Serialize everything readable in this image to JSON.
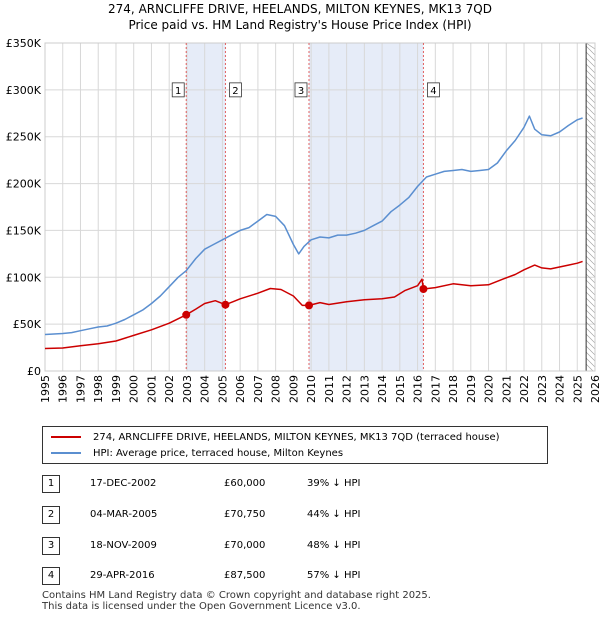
{
  "header": {
    "title": "274, ARNCLIFFE DRIVE, HEELANDS, MILTON KEYNES, MK13 7QD",
    "subtitle": "Price paid vs. HM Land Registry's House Price Index (HPI)"
  },
  "chart_data": {
    "type": "line",
    "title": "Price paid vs. HM Land Registry's House Price Index (HPI)",
    "xlabel": "",
    "ylabel": "",
    "xlim": [
      1995,
      2026
    ],
    "ylim": [
      0,
      350000
    ],
    "x_ticks": [
      "1995",
      "1996",
      "1997",
      "1998",
      "1999",
      "2000",
      "2001",
      "2002",
      "2003",
      "2004",
      "2005",
      "2006",
      "2007",
      "2008",
      "2009",
      "2010",
      "2011",
      "2012",
      "2013",
      "2014",
      "2015",
      "2016",
      "2017",
      "2018",
      "2019",
      "2020",
      "2021",
      "2022",
      "2023",
      "2024",
      "2025",
      "2026"
    ],
    "y_ticks": [
      {
        "value": 0,
        "label": "£0"
      },
      {
        "value": 50000,
        "label": "£50K"
      },
      {
        "value": 100000,
        "label": "£100K"
      },
      {
        "value": 150000,
        "label": "£150K"
      },
      {
        "value": 200000,
        "label": "£200K"
      },
      {
        "value": 250000,
        "label": "£250K"
      },
      {
        "value": 300000,
        "label": "£300K"
      },
      {
        "value": 350000,
        "label": "£350K"
      }
    ],
    "grid": true,
    "colors": {
      "property": "#cc0000",
      "hpi": "#5b8fd0",
      "shade": "#e6ecf8",
      "vline": "#e06060",
      "grid": "#d8d8d8",
      "future_hatch": "#999999"
    },
    "shaded_ranges": [
      [
        2002.96,
        2005.17
      ],
      [
        2009.88,
        2016.33
      ]
    ],
    "future_from": 2025.5,
    "series": [
      {
        "name": "274, ARNCLIFFE DRIVE, HEELANDS, MILTON KEYNES, MK13 7QD (terraced house)",
        "x": [
          1995,
          1996,
          1997,
          1998,
          1999,
          2000,
          2001,
          2002,
          2002.96,
          2003.5,
          2004,
          2004.6,
          2005.17,
          2005.6,
          2006,
          2007,
          2007.7,
          2008.3,
          2009,
          2009.5,
          2009.88,
          2010.5,
          2011,
          2012,
          2013,
          2014,
          2014.7,
          2015.3,
          2016,
          2016.25,
          2016.33,
          2017,
          2018,
          2019,
          2020,
          2020.8,
          2021.5,
          2022,
          2022.6,
          2023,
          2023.5,
          2024,
          2024.5,
          2025,
          2025.3
        ],
        "values": [
          24000,
          24500,
          27000,
          29000,
          32000,
          38000,
          44000,
          51000,
          60000,
          66000,
          72000,
          75000,
          70750,
          74000,
          77000,
          83000,
          88000,
          87000,
          80000,
          70000,
          70000,
          73000,
          71000,
          74000,
          76000,
          77000,
          79000,
          86000,
          91000,
          98000,
          87500,
          89000,
          93000,
          91000,
          92000,
          98000,
          103000,
          108000,
          113000,
          110000,
          109000,
          111000,
          113000,
          115000,
          117000
        ]
      },
      {
        "name": "HPI: Average price, terraced house, Milton Keynes",
        "x": [
          1995,
          1995.5,
          1996,
          1996.5,
          1997,
          1997.5,
          1998,
          1998.5,
          1999,
          1999.5,
          2000,
          2000.5,
          2001,
          2001.5,
          2002,
          2002.5,
          2002.96,
          2003.5,
          2004,
          2004.5,
          2005,
          2005.5,
          2006,
          2006.5,
          2007,
          2007.5,
          2008,
          2008.5,
          2009,
          2009.3,
          2009.6,
          2010,
          2010.5,
          2011,
          2011.5,
          2012,
          2012.5,
          2013,
          2013.5,
          2014,
          2014.5,
          2015,
          2015.5,
          2016,
          2016.5,
          2017,
          2017.5,
          2018,
          2018.5,
          2019,
          2019.5,
          2020,
          2020.5,
          2021,
          2021.5,
          2022,
          2022.3,
          2022.6,
          2023,
          2023.5,
          2024,
          2024.5,
          2025,
          2025.3
        ],
        "values": [
          39000,
          39500,
          40000,
          41000,
          43000,
          45000,
          47000,
          48000,
          51000,
          55000,
          60000,
          65000,
          72000,
          80000,
          90000,
          100000,
          107000,
          120000,
          130000,
          135000,
          140000,
          145000,
          150000,
          153000,
          160000,
          167000,
          165000,
          155000,
          135000,
          125000,
          133000,
          140000,
          143000,
          142000,
          145000,
          145000,
          147000,
          150000,
          155000,
          160000,
          170000,
          177000,
          185000,
          197000,
          207000,
          210000,
          213000,
          214000,
          215000,
          213000,
          214000,
          215000,
          222000,
          235000,
          246000,
          260000,
          272000,
          258000,
          252000,
          251000,
          255000,
          262000,
          268000,
          270000
        ]
      }
    ],
    "sales": [
      {
        "label": "1",
        "x": 2002.96,
        "value": 60000
      },
      {
        "label": "2",
        "x": 2005.17,
        "value": 70750
      },
      {
        "label": "3",
        "x": 2009.88,
        "value": 70000
      },
      {
        "label": "4",
        "x": 2016.33,
        "value": 87500
      }
    ]
  },
  "legend": {
    "property_label": "274, ARNCLIFFE DRIVE, HEELANDS, MILTON KEYNES, MK13 7QD (terraced house)",
    "hpi_label": "HPI: Average price, terraced house, Milton Keynes"
  },
  "transactions": [
    {
      "num": "1",
      "date": "17-DEC-2002",
      "price": "£60,000",
      "hpi": "39% ↓ HPI"
    },
    {
      "num": "2",
      "date": "04-MAR-2005",
      "price": "£70,750",
      "hpi": "44% ↓ HPI"
    },
    {
      "num": "3",
      "date": "18-NOV-2009",
      "price": "£70,000",
      "hpi": "48% ↓ HPI"
    },
    {
      "num": "4",
      "date": "29-APR-2016",
      "price": "£87,500",
      "hpi": "57% ↓ HPI"
    }
  ],
  "footer": {
    "line1": "Contains HM Land Registry data © Crown copyright and database right 2025.",
    "line2": "This data is licensed under the Open Government Licence v3.0."
  }
}
